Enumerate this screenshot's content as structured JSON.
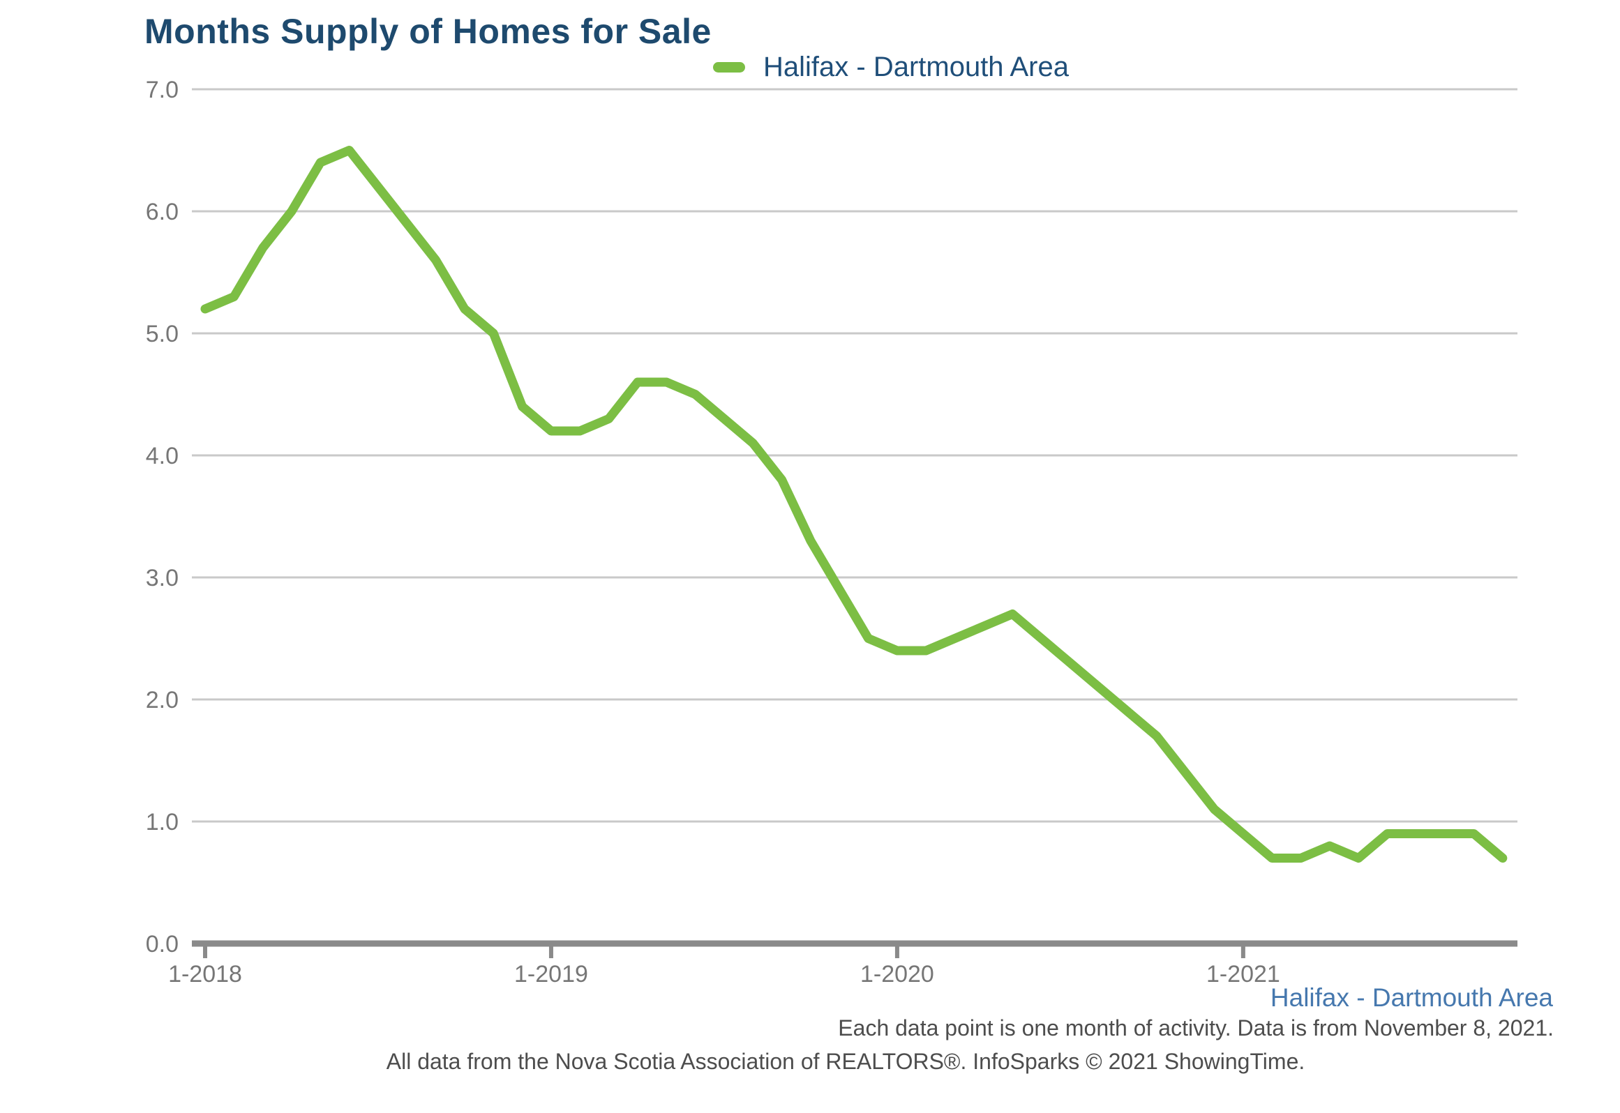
{
  "title": "Months Supply of Homes for Sale",
  "legend": {
    "label": "Halifax - Dartmouth Area"
  },
  "footer": {
    "series_label": "Halifax - Dartmouth Area",
    "note1": "Each data point is one month of activity. Data is from November 8, 2021.",
    "note2": "All data from the Nova Scotia Association of REALTORS®. InfoSparks © 2021 ShowingTime."
  },
  "colors": {
    "line": "#7cbe44",
    "title_text": "#1e4a6e",
    "legend_text": "#1f4e79",
    "footer_series_text": "#4678ae",
    "note_text": "#4d4d4d",
    "axis_text": "#767676",
    "gridline": "#c9c9c9",
    "axis_line": "#8a8a8a"
  },
  "chart_data": {
    "type": "line",
    "title": "Months Supply of Homes for Sale",
    "series_name": "Halifax - Dartmouth Area",
    "xlabel": "",
    "ylabel": "",
    "ylim": [
      0,
      7
    ],
    "y_ticks": [
      0,
      1,
      2,
      3,
      4,
      5,
      6,
      7
    ],
    "x_tick_labels": [
      "1-2018",
      "1-2019",
      "1-2020",
      "1-2021"
    ],
    "grid": "horizontal",
    "legend_position": "top-center",
    "x": [
      "1-2018",
      "2-2018",
      "3-2018",
      "4-2018",
      "5-2018",
      "6-2018",
      "7-2018",
      "8-2018",
      "9-2018",
      "10-2018",
      "11-2018",
      "12-2018",
      "1-2019",
      "2-2019",
      "3-2019",
      "4-2019",
      "5-2019",
      "6-2019",
      "7-2019",
      "8-2019",
      "9-2019",
      "10-2019",
      "11-2019",
      "12-2019",
      "1-2020",
      "2-2020",
      "3-2020",
      "4-2020",
      "5-2020",
      "6-2020",
      "7-2020",
      "8-2020",
      "9-2020",
      "10-2020",
      "11-2020",
      "12-2020",
      "1-2021",
      "2-2021",
      "3-2021",
      "4-2021",
      "5-2021",
      "6-2021",
      "7-2021",
      "8-2021",
      "9-2021",
      "10-2021"
    ],
    "values": [
      5.2,
      5.3,
      5.7,
      6.0,
      6.4,
      6.5,
      6.2,
      5.9,
      5.6,
      5.2,
      5.0,
      4.4,
      4.2,
      4.2,
      4.3,
      4.6,
      4.6,
      4.5,
      4.3,
      4.1,
      3.8,
      3.3,
      2.9,
      2.5,
      2.4,
      2.4,
      2.5,
      2.6,
      2.7,
      2.5,
      2.3,
      2.1,
      1.9,
      1.7,
      1.4,
      1.1,
      0.9,
      0.7,
      0.7,
      0.8,
      0.7,
      0.9,
      0.9,
      0.9,
      0.9,
      0.7
    ]
  }
}
